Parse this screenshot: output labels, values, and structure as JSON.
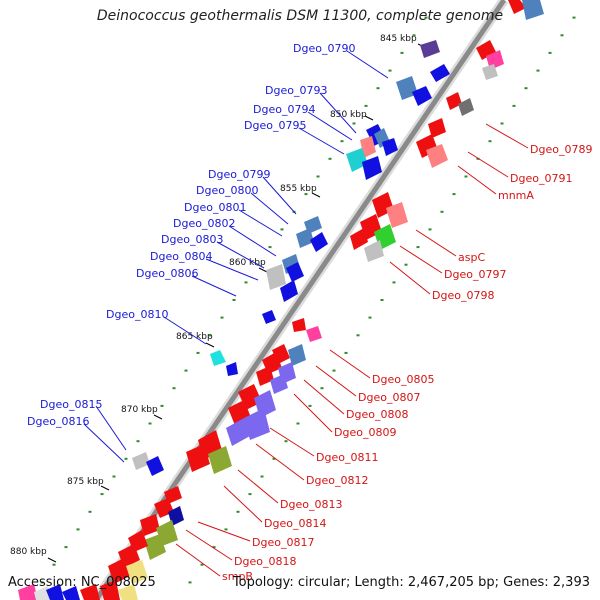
{
  "title": "Deinococcus geothermalis DSM 11300, complete genome",
  "accession": "Accession: NC_008025",
  "topology": "Topology: circular; Length: 2,467,205 bp; Genes: 2,393",
  "ticks": [
    {
      "label": "845 kbp"
    },
    {
      "label": "850 kbp"
    },
    {
      "label": "855 kbp"
    },
    {
      "label": "860 kbp"
    },
    {
      "label": "865 kbp"
    },
    {
      "label": "870 kbp"
    },
    {
      "label": "875 kbp"
    },
    {
      "label": "880 kbp"
    }
  ],
  "forward_labels": [
    "Dgeo_0790",
    "Dgeo_0793",
    "Dgeo_0794",
    "Dgeo_0795",
    "Dgeo_0799",
    "Dgeo_0800",
    "Dgeo_0801",
    "Dgeo_0802",
    "Dgeo_0803",
    "Dgeo_0804",
    "Dgeo_0806",
    "Dgeo_0810",
    "Dgeo_0815",
    "Dgeo_0816"
  ],
  "reverse_labels": [
    "Dgeo_0789",
    "Dgeo_0791",
    "mnmA",
    "aspC",
    "Dgeo_0797",
    "Dgeo_0798",
    "Dgeo_0805",
    "Dgeo_0807",
    "Dgeo_0808",
    "Dgeo_0809",
    "Dgeo_0811",
    "Dgeo_0812",
    "Dgeo_0813",
    "Dgeo_0814",
    "Dgeo_0817",
    "Dgeo_0818",
    "smpB"
  ],
  "colors": {
    "forward_cds": "#1010e0",
    "reverse_cds": "#ee1010",
    "backbone": "#9a9a9a",
    "label_forward": "#1a1ad6",
    "label_reverse": "#d41515",
    "tick_dot": "#2e8b2e"
  }
}
